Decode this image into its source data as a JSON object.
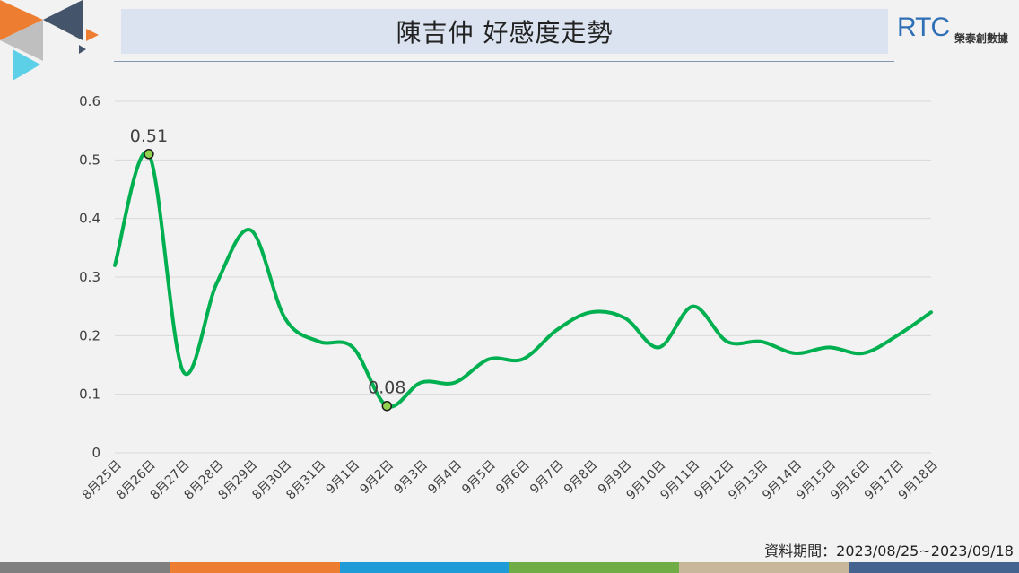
{
  "header": {
    "title": "陳吉仲 好感度走勢",
    "logo_mark": "RTC",
    "logo_text": "榮泰創數據"
  },
  "footnote": "資料期間：2023/08/25~2023/09/18",
  "colors": {
    "line": "#00b050",
    "marker_fill": "#92d050",
    "grid": "#d9d9d9",
    "bottom_bar": [
      "#7f7f7f",
      "#ed7d31",
      "#1f9bd7",
      "#70ad47",
      "#c9b79c",
      "#44648f"
    ]
  },
  "chart_data": {
    "type": "line",
    "title": "",
    "xlabel": "",
    "ylabel": "",
    "ylim": [
      0,
      0.6
    ],
    "yticks": [
      "0",
      "0.1",
      "0.2",
      "0.3",
      "0.4",
      "0.5",
      "0.6"
    ],
    "grid": true,
    "legend": "none",
    "categories": [
      "8月25日",
      "8月26日",
      "8月27日",
      "8月28日",
      "8月29日",
      "8月30日",
      "8月31日",
      "9月1日",
      "9月2日",
      "9月3日",
      "9月4日",
      "9月5日",
      "9月6日",
      "9月7日",
      "9月8日",
      "9月9日",
      "9月10日",
      "9月11日",
      "9月12日",
      "9月13日",
      "9月14日",
      "9月15日",
      "9月16日",
      "9月17日",
      "9月18日"
    ],
    "series": [
      {
        "values": [
          0.32,
          0.51,
          0.14,
          0.29,
          0.38,
          0.23,
          0.19,
          0.18,
          0.08,
          0.12,
          0.12,
          0.16,
          0.16,
          0.21,
          0.24,
          0.23,
          0.18,
          0.25,
          0.19,
          0.19,
          0.17,
          0.18,
          0.17,
          0.2,
          0.24
        ]
      }
    ],
    "annotations": [
      {
        "category": "8月26日",
        "value": 0.51,
        "label": "0.51"
      },
      {
        "category": "9月2日",
        "value": 0.08,
        "label": "0.08"
      }
    ]
  }
}
